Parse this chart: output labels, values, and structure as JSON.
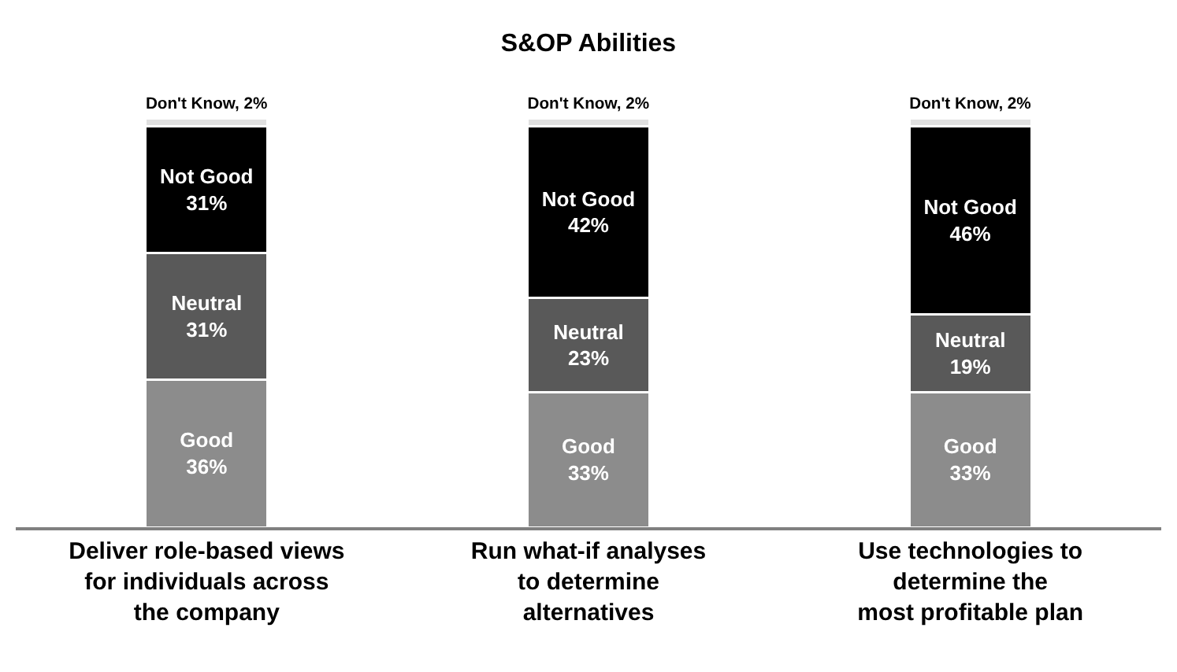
{
  "chart_data": {
    "type": "bar",
    "title": "S&OP Abilities",
    "stacked": true,
    "legend": false,
    "categories": [
      "Deliver role-based views\nfor individuals across\nthe company",
      "Run what-if analyses\nto determine\nalternatives",
      "Use technologies to\ndetermine the\nmost profitable plan"
    ],
    "ylim": [
      0,
      100
    ],
    "series": [
      {
        "color": "#8c8c8c",
        "values": [
          36,
          33,
          33
        ],
        "value_labels": [
          "Good\n36%",
          "Good\n33%",
          "Good\n33%"
        ]
      },
      {
        "color": "#595959",
        "values": [
          31,
          23,
          19
        ],
        "value_labels": [
          "Neutral\n31%",
          "Neutral\n23%",
          "Neutral\n19%"
        ]
      },
      {
        "color": "#000000",
        "values": [
          31,
          42,
          46
        ],
        "value_labels": [
          "Not Good\n31%",
          "Not Good\n42%",
          "Not Good\n46%"
        ]
      },
      {
        "color": "#e0e0e0",
        "values": [
          2,
          2,
          2
        ],
        "value_labels": [
          "Don't Know, 2%",
          "Don't Know, 2%",
          "Don't Know, 2%"
        ]
      }
    ]
  }
}
